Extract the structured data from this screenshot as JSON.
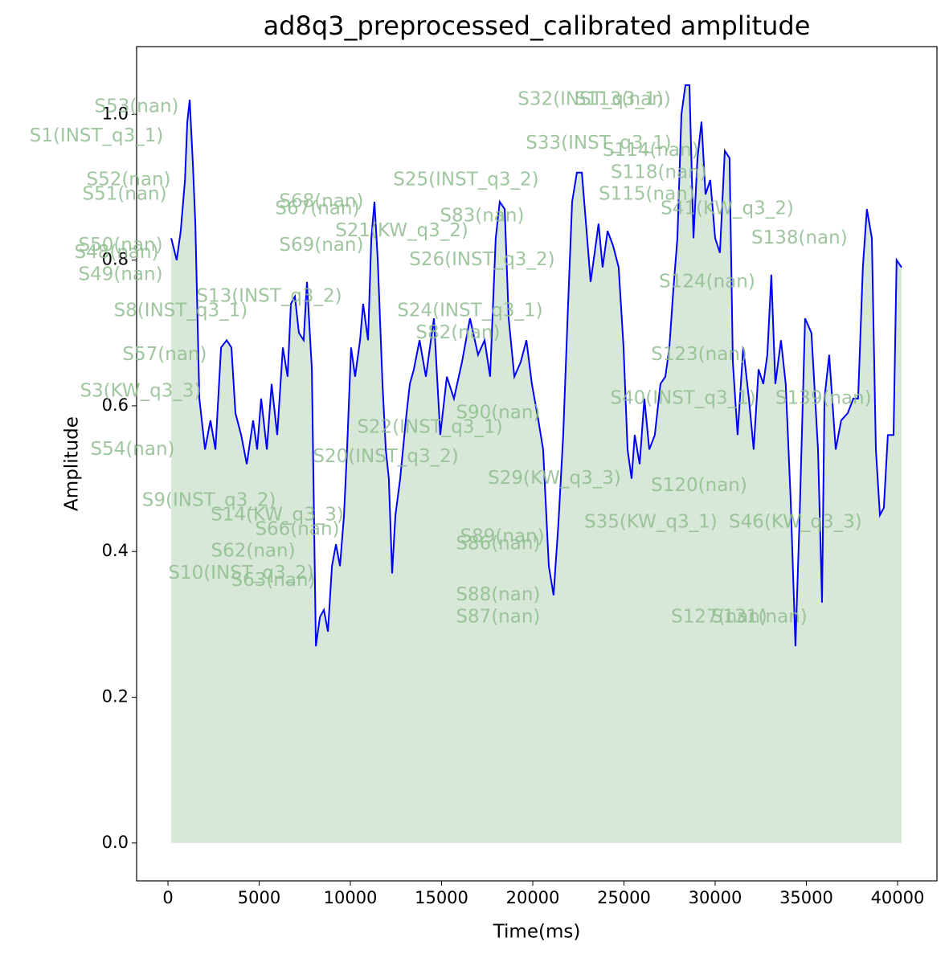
{
  "chart_data": {
    "type": "line",
    "title": "ad8q3_preprocessed_calibrated amplitude",
    "x_label": "Time(ms)",
    "y_label": "Amplitude",
    "xlim": [
      -1720,
      42160
    ],
    "ylim": [
      -0.052,
      1.093
    ],
    "xticks": [
      0,
      5000,
      10000,
      15000,
      20000,
      25000,
      30000,
      35000,
      40000
    ],
    "yticks": [
      {
        "value": 0,
        "label": "0.0"
      },
      0.2,
      0.4,
      0.6,
      0.8,
      {
        "value": 1,
        "label": "1.0"
      }
    ],
    "line_color": "#0000ff",
    "fill_color": "#8fbc8f",
    "x": [
      180,
      480,
      700,
      930,
      1060,
      1190,
      1370,
      1500,
      1720,
      2030,
      2330,
      2600,
      2910,
      3220,
      3480,
      3700,
      4010,
      4320,
      4670,
      4890,
      5110,
      5420,
      5680,
      5990,
      6300,
      6560,
      6740,
      6960,
      7180,
      7440,
      7620,
      7890,
      8110,
      8330,
      8550,
      8770,
      8990,
      9210,
      9430,
      9650,
      9820,
      10040,
      10260,
      10530,
      10700,
      10970,
      11150,
      11320,
      11500,
      11760,
      11940,
      12110,
      12290,
      12470,
      12730,
      13040,
      13260,
      13480,
      13790,
      14140,
      14580,
      14930,
      15290,
      15680,
      16120,
      16560,
      17000,
      17360,
      17660,
      17970,
      18190,
      18460,
      18680,
      18990,
      19340,
      19650,
      19950,
      20310,
      20570,
      20880,
      21140,
      21410,
      21670,
      21940,
      22160,
      22420,
      22690,
      22950,
      23170,
      23390,
      23610,
      23830,
      24100,
      24400,
      24710,
      24980,
      25200,
      25420,
      25590,
      25860,
      26120,
      26390,
      26690,
      27000,
      27270,
      27490,
      27710,
      27930,
      28150,
      28370,
      28590,
      28810,
      29030,
      29250,
      29470,
      29730,
      30000,
      30260,
      30530,
      30790,
      30970,
      31230,
      31540,
      31850,
      32110,
      32380,
      32640,
      32860,
      33080,
      33300,
      33610,
      33870,
      34140,
      34400,
      34620,
      34930,
      35280,
      35640,
      35860,
      35990,
      36250,
      36610,
      36910,
      37270,
      37580,
      37840,
      38100,
      38320,
      38590,
      38810,
      39030,
      39250,
      39470,
      39780,
      39950,
      40220
    ],
    "values": [
      0.83,
      0.8,
      0.84,
      0.91,
      0.99,
      1.02,
      0.93,
      0.85,
      0.61,
      0.54,
      0.58,
      0.54,
      0.68,
      0.69,
      0.68,
      0.59,
      0.56,
      0.52,
      0.58,
      0.54,
      0.61,
      0.54,
      0.63,
      0.56,
      0.68,
      0.64,
      0.74,
      0.75,
      0.7,
      0.69,
      0.77,
      0.65,
      0.27,
      0.31,
      0.32,
      0.29,
      0.38,
      0.41,
      0.38,
      0.45,
      0.54,
      0.68,
      0.64,
      0.69,
      0.74,
      0.69,
      0.83,
      0.88,
      0.8,
      0.63,
      0.54,
      0.5,
      0.37,
      0.45,
      0.5,
      0.58,
      0.63,
      0.65,
      0.69,
      0.64,
      0.72,
      0.56,
      0.64,
      0.61,
      0.66,
      0.72,
      0.67,
      0.69,
      0.64,
      0.83,
      0.88,
      0.87,
      0.72,
      0.64,
      0.66,
      0.69,
      0.63,
      0.58,
      0.54,
      0.38,
      0.34,
      0.44,
      0.56,
      0.74,
      0.88,
      0.92,
      0.92,
      0.84,
      0.77,
      0.81,
      0.85,
      0.79,
      0.84,
      0.82,
      0.79,
      0.68,
      0.54,
      0.5,
      0.56,
      0.52,
      0.61,
      0.54,
      0.56,
      0.63,
      0.64,
      0.68,
      0.76,
      0.83,
      1.0,
      1.04,
      1.04,
      0.83,
      0.94,
      0.99,
      0.89,
      0.91,
      0.83,
      0.81,
      0.95,
      0.94,
      0.66,
      0.56,
      0.68,
      0.61,
      0.54,
      0.65,
      0.63,
      0.67,
      0.78,
      0.63,
      0.69,
      0.63,
      0.47,
      0.27,
      0.44,
      0.72,
      0.7,
      0.54,
      0.33,
      0.61,
      0.67,
      0.54,
      0.58,
      0.59,
      0.61,
      0.61,
      0.79,
      0.87,
      0.83,
      0.54,
      0.45,
      0.46,
      0.56,
      0.56,
      0.8,
      0.79
    ],
    "annotations": [
      {
        "text": "S53(nan)",
        "x": -1720,
        "y": 1.01
      },
      {
        "text": "S1(INST_q3_1)",
        "x": -3920,
        "y": 0.97
      },
      {
        "text": "S52(nan)",
        "x": -2160,
        "y": 0.91
      },
      {
        "text": "S51(nan)",
        "x": -2380,
        "y": 0.89
      },
      {
        "text": "S50(nan)",
        "x": -2600,
        "y": 0.82
      },
      {
        "text": "S48(nan)",
        "x": -2820,
        "y": 0.81
      },
      {
        "text": "S49(nan)",
        "x": -2600,
        "y": 0.78
      },
      {
        "text": "S3(KW_q3_3)",
        "x": -1500,
        "y": 0.62
      },
      {
        "text": "S54(nan)",
        "x": -1940,
        "y": 0.54
      },
      {
        "text": "S9(INST_q3_2)",
        "x": 2250,
        "y": 0.47
      },
      {
        "text": "S10(INST_q3_2)",
        "x": 4010,
        "y": 0.37
      },
      {
        "text": "S62(nan)",
        "x": 4670,
        "y": 0.4
      },
      {
        "text": "S63(nan)",
        "x": 5770,
        "y": 0.36
      },
      {
        "text": "S13(INST_q3_2)",
        "x": 5550,
        "y": 0.75
      },
      {
        "text": "S8(INST_q3_1)",
        "x": 700,
        "y": 0.73
      },
      {
        "text": "S57(nan)",
        "x": -180,
        "y": 0.67
      },
      {
        "text": "S68(nan)",
        "x": 8410,
        "y": 0.88
      },
      {
        "text": "S67(nan)",
        "x": 8190,
        "y": 0.87
      },
      {
        "text": "S69(nan)",
        "x": 8410,
        "y": 0.82
      },
      {
        "text": "S21(KW_q3_2)",
        "x": 12820,
        "y": 0.84
      },
      {
        "text": "S24(INST_q3_1)",
        "x": 16560,
        "y": 0.73
      },
      {
        "text": "S82(nan)",
        "x": 15900,
        "y": 0.7
      },
      {
        "text": "S22(INST_q3_1)",
        "x": 14360,
        "y": 0.57
      },
      {
        "text": "S20(INST_q3_2)",
        "x": 11940,
        "y": 0.53
      },
      {
        "text": "S14(KW_q3_3)",
        "x": 5990,
        "y": 0.45
      },
      {
        "text": "S66(nan)",
        "x": 7090,
        "y": 0.43
      },
      {
        "text": "S25(INST_q3_2)",
        "x": 16340,
        "y": 0.91
      },
      {
        "text": "S83(nan)",
        "x": 17220,
        "y": 0.86
      },
      {
        "text": "S26(INST_q3_2)",
        "x": 17220,
        "y": 0.8
      },
      {
        "text": "S29(KW_q3_3)",
        "x": 21190,
        "y": 0.5
      },
      {
        "text": "S89(nan)",
        "x": 18330,
        "y": 0.42
      },
      {
        "text": "S86(nan)",
        "x": 18100,
        "y": 0.41
      },
      {
        "text": "S88(nan)",
        "x": 18100,
        "y": 0.34
      },
      {
        "text": "S87(nan)",
        "x": 18100,
        "y": 0.31
      },
      {
        "text": "S32(INST_q3_1)",
        "x": 23170,
        "y": 1.02
      },
      {
        "text": "S113(nan)",
        "x": 24930,
        "y": 1.02
      },
      {
        "text": "S33(INST_q3_1)",
        "x": 23610,
        "y": 0.96
      },
      {
        "text": "S114(nan)",
        "x": 26470,
        "y": 0.95
      },
      {
        "text": "S118(nan)",
        "x": 26910,
        "y": 0.92
      },
      {
        "text": "S115(nan)",
        "x": 26250,
        "y": 0.89
      },
      {
        "text": "S41(KW_q3_2)",
        "x": 30660,
        "y": 0.87
      },
      {
        "text": "S138(nan)",
        "x": 34620,
        "y": 0.83
      },
      {
        "text": "S124(nan)",
        "x": 29560,
        "y": 0.77
      },
      {
        "text": "S123(nan)",
        "x": 29120,
        "y": 0.67
      },
      {
        "text": "S35(KW_q3_1)",
        "x": 26470,
        "y": 0.44
      },
      {
        "text": "S46(KW_q3_3)",
        "x": 34400,
        "y": 0.44
      },
      {
        "text": "S127(nan)",
        "x": 30220,
        "y": 0.31
      },
      {
        "text": "S131(nan)",
        "x": 32420,
        "y": 0.31
      },
      {
        "text": "S90(nan)",
        "x": 18100,
        "y": 0.59
      },
      {
        "text": "S40(INST_q3_1)",
        "x": 28240,
        "y": 0.61
      },
      {
        "text": "S139(nan)",
        "x": 35940,
        "y": 0.61
      },
      {
        "text": "S120(nan)",
        "x": 29120,
        "y": 0.49
      }
    ]
  }
}
